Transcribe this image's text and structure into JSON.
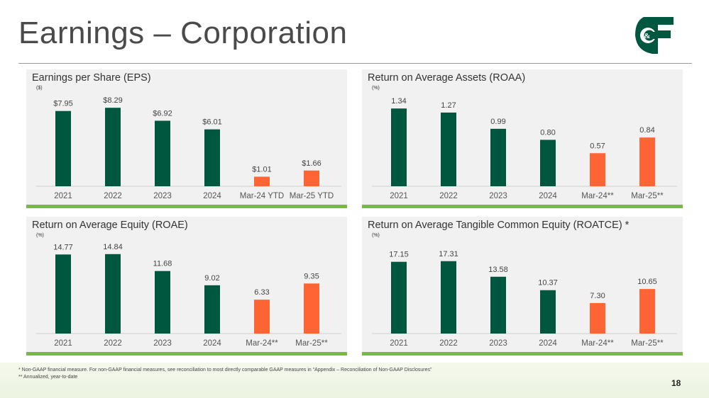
{
  "page": {
    "title": "Earnings – Corporation",
    "page_number": "18",
    "logo_text": "C&F",
    "footnotes": [
      "*  Non-GAAP financial measure.  For non-GAAP financial measures, see reconciliation to most directly comparable GAAP measures in “Appendix – Reconciliation of Non-GAAP Disclosures”",
      "** Annualized, year-to-date"
    ]
  },
  "colors": {
    "green": "#00573f",
    "orange": "#ff6534",
    "accent_strip": "#7bb843",
    "panel_bg": "#f1f1f1"
  },
  "chart_data": [
    {
      "type": "bar",
      "title": "Earnings per Share (EPS)",
      "unit": "($)",
      "categories": [
        "2021",
        "2022",
        "2023",
        "2024",
        "Mar-24 YTD",
        "Mar-25 YTD"
      ],
      "values": [
        7.95,
        8.29,
        6.92,
        6.01,
        1.01,
        1.66
      ],
      "labels": [
        "$7.95",
        "$8.29",
        "$6.92",
        "$6.01",
        "$1.01",
        "$1.66"
      ],
      "bar_colors": [
        "green",
        "green",
        "green",
        "green",
        "orange",
        "orange"
      ],
      "ylim": [
        0,
        9.5
      ]
    },
    {
      "type": "bar",
      "title": "Return on Average Assets (ROAA)",
      "unit": "(%)",
      "categories": [
        "2021",
        "2022",
        "2023",
        "2024",
        "Mar-24**",
        "Mar-25**"
      ],
      "values": [
        1.34,
        1.27,
        0.99,
        0.8,
        0.57,
        0.84
      ],
      "labels": [
        "1.34",
        "1.27",
        "0.99",
        "0.80",
        "0.57",
        "0.84"
      ],
      "bar_colors": [
        "green",
        "green",
        "green",
        "green",
        "orange",
        "orange"
      ],
      "ylim": [
        0,
        1.55
      ]
    },
    {
      "type": "bar",
      "title": "Return on Average Equity (ROAE)",
      "unit": "(%)",
      "categories": [
        "2021",
        "2022",
        "2023",
        "2024",
        "Mar-24**",
        "Mar-25**"
      ],
      "values": [
        14.77,
        14.84,
        11.68,
        9.02,
        6.33,
        9.35
      ],
      "labels": [
        "14.77",
        "14.84",
        "11.68",
        "9.02",
        "6.33",
        "9.35"
      ],
      "bar_colors": [
        "green",
        "green",
        "green",
        "green",
        "orange",
        "orange"
      ],
      "ylim": [
        0,
        16.8
      ]
    },
    {
      "type": "bar",
      "title": "Return on Average Tangible Common Equity (ROATCE) *",
      "unit": "(%)",
      "categories": [
        "2021",
        "2022",
        "2023",
        "2024",
        "Mar-24**",
        "Mar-25**"
      ],
      "values": [
        17.15,
        17.31,
        13.58,
        10.37,
        7.3,
        10.65
      ],
      "labels": [
        "17.15",
        "17.31",
        "13.58",
        "10.37",
        "7.30",
        "10.65"
      ],
      "bar_colors": [
        "green",
        "green",
        "green",
        "green",
        "orange",
        "orange"
      ],
      "ylim": [
        0,
        21.5
      ]
    }
  ]
}
